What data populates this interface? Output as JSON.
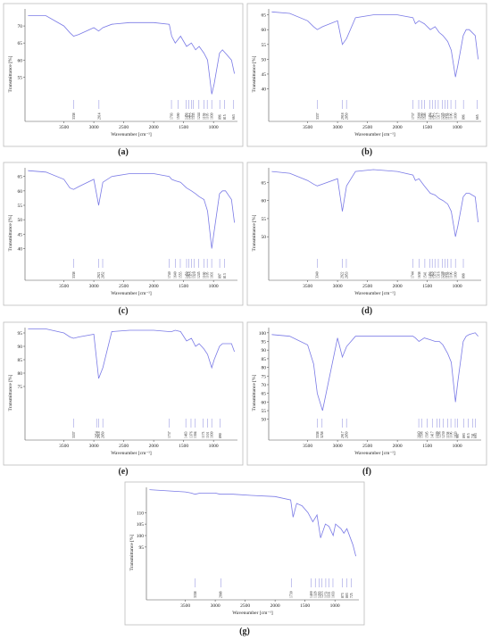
{
  "chart_data": [
    {
      "type": "line",
      "label": "(a)",
      "xlabel": "Wavenumber [cm⁻¹]",
      "ylabel": "Transmittance [%]",
      "color": "#7a7ae6",
      "x": [
        4100,
        3800,
        3500,
        3400,
        3338,
        3250,
        3000,
        2920,
        2850,
        2700,
        2400,
        2000,
        1740,
        1700,
        1640,
        1550,
        1450,
        1370,
        1300,
        1240,
        1160,
        1100,
        1030,
        990,
        900,
        850,
        800,
        700,
        650
      ],
      "values": [
        73,
        73,
        70,
        68,
        67,
        67.5,
        69.5,
        68.5,
        69.5,
        70.5,
        71,
        71,
        70.5,
        67,
        65,
        67,
        64,
        65,
        63,
        64,
        62,
        60,
        50,
        53,
        62,
        63,
        62,
        60,
        56
      ],
      "xlim": [
        4150,
        600
      ],
      "ylim": [
        42,
        75
      ],
      "xticks": [
        3500,
        3000,
        2500,
        2000,
        1500,
        1000
      ],
      "yticks": [
        55,
        60,
        65,
        70
      ],
      "peaks": [
        3338,
        2914,
        1703,
        1590,
        1456,
        1412,
        1372,
        1335,
        1244,
        1159,
        1105,
        1030,
        896,
        815,
        663
      ]
    },
    {
      "type": "line",
      "label": "(b)",
      "xlabel": "Wavenumber [cm⁻¹]",
      "ylabel": "Transmittance [%]",
      "color": "#7a7ae6",
      "x": [
        4100,
        3800,
        3500,
        3400,
        3338,
        3250,
        3000,
        2920,
        2850,
        2700,
        2400,
        2000,
        1740,
        1700,
        1640,
        1550,
        1450,
        1370,
        1300,
        1240,
        1160,
        1100,
        1030,
        990,
        900,
        850,
        800,
        700,
        650
      ],
      "values": [
        66,
        65.5,
        63,
        61,
        60,
        61,
        63,
        55,
        57,
        64,
        65,
        65,
        64,
        62,
        63,
        62,
        60,
        61,
        59,
        58,
        56,
        53,
        44,
        48,
        58,
        60,
        60,
        58,
        50
      ],
      "xlim": [
        4150,
        600
      ],
      "ylim": [
        29,
        67
      ],
      "xticks": [
        3500,
        3000,
        2500,
        2000,
        1500,
        1000
      ],
      "yticks": [
        40,
        45,
        50,
        55,
        60,
        65
      ],
      "peaks": [
        3337,
        2918,
        2850,
        1737,
        1644,
        1590,
        1546,
        1456,
        1417,
        1372,
        1317,
        1245,
        1201,
        1159,
        1106,
        1030,
        896,
        665
      ]
    },
    {
      "type": "line",
      "label": "(c)",
      "xlabel": "Wavenumber [cm⁻¹]",
      "ylabel": "Transmittance [%]",
      "color": "#7a7ae6",
      "x": [
        4100,
        3800,
        3500,
        3400,
        3338,
        3250,
        3000,
        2920,
        2850,
        2700,
        2400,
        2000,
        1740,
        1700,
        1640,
        1550,
        1450,
        1370,
        1300,
        1240,
        1160,
        1100,
        1030,
        990,
        900,
        850,
        800,
        700,
        650
      ],
      "values": [
        67,
        66.5,
        64,
        61,
        60.5,
        61.5,
        64,
        55,
        63,
        65,
        66,
        66,
        65,
        64,
        63.5,
        63,
        61,
        60,
        59,
        58,
        57,
        53,
        40,
        46,
        59,
        60,
        60,
        57,
        49
      ],
      "xlim": [
        4150,
        600
      ],
      "ylim": [
        29,
        68
      ],
      "xticks": [
        3500,
        3000,
        2500,
        2000,
        1500,
        1000
      ],
      "yticks": [
        40,
        45,
        50,
        55,
        60,
        65
      ],
      "peaks": [
        3338,
        2921,
        2852,
        1740,
        1640,
        1555,
        1450,
        1416,
        1372,
        1320,
        1245,
        1160,
        1105,
        1031,
        897,
        813
      ]
    },
    {
      "type": "line",
      "label": "(d)",
      "xlabel": "Wavenumber [cm⁻¹]",
      "ylabel": "Transmittance [%]",
      "color": "#7a7ae6",
      "x": [
        4100,
        3800,
        3500,
        3400,
        3338,
        3250,
        3000,
        2920,
        2850,
        2700,
        2400,
        2000,
        1740,
        1700,
        1640,
        1550,
        1450,
        1370,
        1300,
        1240,
        1160,
        1100,
        1030,
        990,
        900,
        850,
        800,
        700,
        650
      ],
      "values": [
        68,
        67.5,
        65.5,
        64.5,
        64,
        64.5,
        66,
        57,
        64,
        68,
        68.5,
        68,
        67,
        65.5,
        66,
        64,
        62,
        61.5,
        60.5,
        60,
        59,
        57,
        50,
        53,
        61,
        62,
        62,
        61,
        54
      ],
      "xlim": [
        4150,
        600
      ],
      "ylim": [
        38,
        69
      ],
      "xticks": [
        3500,
        3000,
        2500,
        2000,
        1500,
        1000
      ],
      "yticks": [
        50,
        55,
        60,
        65
      ],
      "peaks": [
        3340,
        2922,
        2853,
        1744,
        1638,
        1541,
        1456,
        1418,
        1373,
        1316,
        1248,
        1201,
        1159,
        1106,
        1030,
        898
      ]
    },
    {
      "type": "line",
      "label": "(e)",
      "xlabel": "Wavenumber [cm⁻¹]",
      "ylabel": "Transmittance [%]",
      "color": "#7a7ae6",
      "x": [
        4100,
        3800,
        3500,
        3400,
        3338,
        3250,
        3000,
        2920,
        2850,
        2700,
        2400,
        2000,
        1740,
        1700,
        1640,
        1550,
        1450,
        1370,
        1300,
        1240,
        1160,
        1100,
        1030,
        990,
        900,
        850,
        800,
        700,
        650
      ],
      "values": [
        96.5,
        96.5,
        95,
        93.5,
        93,
        93.5,
        94.5,
        78,
        82,
        95.5,
        96,
        96,
        95.5,
        95.5,
        96,
        95.5,
        92,
        93,
        90,
        91,
        89,
        87,
        82,
        85,
        90,
        91,
        91,
        91,
        88
      ],
      "xlim": [
        4150,
        600
      ],
      "ylim": [
        55,
        97
      ],
      "xticks": [
        3500,
        3000,
        2500,
        2000,
        1500,
        1000
      ],
      "yticks": [
        75,
        80,
        85,
        90,
        95
      ],
      "peaks": [
        3337,
        2954,
        2918,
        2850,
        1737,
        1463,
        1376,
        1304,
        1173,
        1101,
        1030,
        890
      ]
    },
    {
      "type": "line",
      "label": "(f)",
      "xlabel": "Wavenumber [cm⁻¹]",
      "ylabel": "Transmittance [%]",
      "color": "#7a7ae6",
      "x": [
        4100,
        3800,
        3500,
        3400,
        3338,
        3250,
        3000,
        2920,
        2850,
        2700,
        2400,
        2000,
        1740,
        1700,
        1640,
        1550,
        1450,
        1370,
        1300,
        1240,
        1160,
        1100,
        1030,
        990,
        900,
        850,
        800,
        700,
        650
      ],
      "values": [
        99,
        98,
        93,
        82,
        65,
        55,
        97,
        86,
        92,
        98,
        98,
        98,
        98,
        97,
        95,
        97,
        96,
        95,
        95,
        93,
        88,
        83,
        60,
        72,
        95,
        98,
        99,
        100,
        98
      ],
      "xlim": [
        4150,
        600
      ],
      "ylim": [
        38,
        103
      ],
      "xticks": [
        3500,
        3000,
        2500,
        2000,
        1500,
        1000
      ],
      "yticks": [
        50,
        55,
        60,
        65,
        70,
        75,
        80,
        85,
        90,
        95,
        100
      ],
      "peaks": [
        3338,
        3258,
        2917,
        2850,
        1643,
        1596,
        1505,
        1417,
        1339,
        1296,
        1230,
        1158,
        1106,
        1033,
        997,
        893,
        815,
        741,
        693
      ]
    },
    {
      "type": "line",
      "label": "(g)",
      "xlabel": "Wavenumber [cm⁻¹]",
      "ylabel": "Transmittance [%]",
      "color": "#7a7ae6",
      "x": [
        4100,
        3800,
        3500,
        3400,
        3338,
        3250,
        3000,
        2920,
        2850,
        2700,
        2400,
        2000,
        1740,
        1700,
        1640,
        1550,
        1450,
        1370,
        1300,
        1240,
        1160,
        1100,
        1030,
        990,
        900,
        850,
        800,
        700,
        650
      ],
      "values": [
        120,
        119.5,
        119,
        118.5,
        118,
        118.5,
        118.5,
        118,
        118,
        118,
        117.5,
        117,
        115.5,
        108,
        114,
        113,
        110,
        106,
        109,
        99,
        105,
        104,
        100,
        105,
        103,
        101,
        103,
        96,
        91
      ],
      "xlim": [
        4150,
        600
      ],
      "ylim": [
        72,
        121
      ],
      "xticks": [
        3500,
        3000,
        2500,
        2000,
        1500,
        1000
      ],
      "yticks": [
        95,
        100,
        105,
        110
      ],
      "peaks": [
        3338,
        2908,
        1730,
        1400,
        1328,
        1263,
        1215,
        1153,
        1101,
        1033,
        873,
        803,
        725
      ]
    }
  ]
}
